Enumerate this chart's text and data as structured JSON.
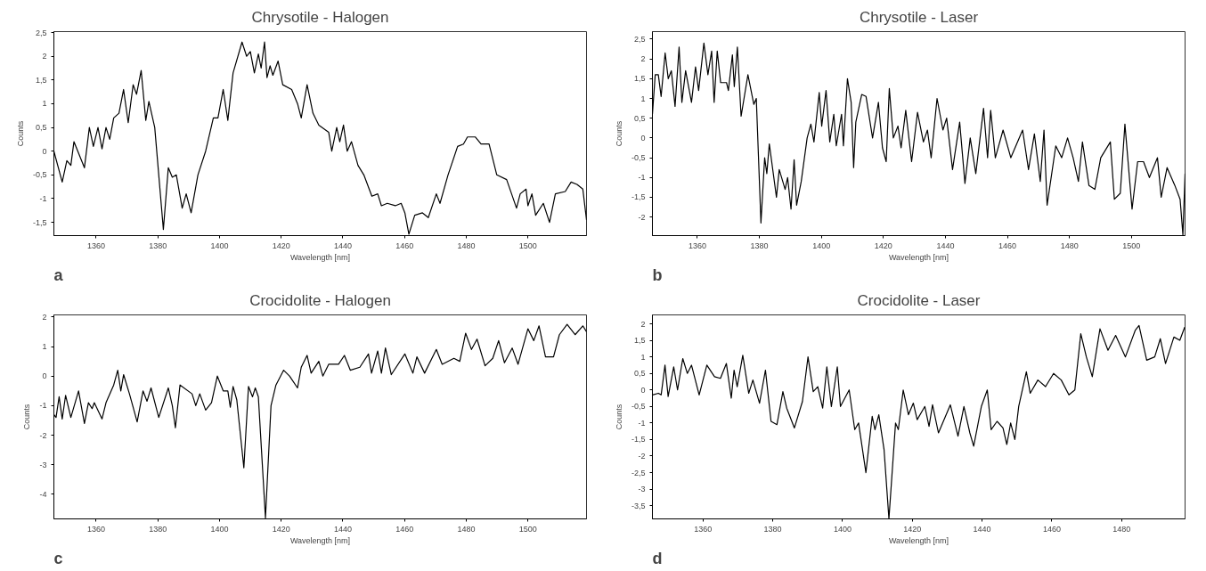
{
  "chart_data": [
    {
      "type": "line",
      "title": "Chrysotile - Halogen",
      "xlabel": "Wavelength [nm]",
      "ylabel": "Counts",
      "annotations": [
        "a"
      ],
      "x": [
        1346.3,
        1349,
        1350.5,
        1351.8,
        1352.8,
        1356.2,
        1357.8,
        1359.1,
        1360.6,
        1361.9,
        1363.2,
        1364.4,
        1365.7,
        1367.4,
        1368.9,
        1370.4,
        1372,
        1373.1,
        1374.6,
        1376.1,
        1377.1,
        1379,
        1380.3,
        1381.8,
        1383.4,
        1384.7,
        1386,
        1387.9,
        1389.2,
        1390.8,
        1393,
        1395.5,
        1398,
        1399.5,
        1401.2,
        1402.7,
        1404.4,
        1407.3,
        1408.8,
        1410,
        1411.3,
        1412.6,
        1413.5,
        1414.6,
        1415.4,
        1416.4,
        1417.3,
        1419,
        1420.5,
        1423.4,
        1425.3,
        1426.5,
        1428.4,
        1430.3,
        1432.2,
        1435.4,
        1436.4,
        1438,
        1439,
        1440.2,
        1441.4,
        1442.8,
        1444.9,
        1446.8,
        1449.4,
        1451.3,
        1452.5,
        1454.4,
        1457,
        1458.9,
        1460.1,
        1461.4,
        1463.3,
        1465.8,
        1467.7,
        1470.3,
        1471.5,
        1474.1,
        1477.2,
        1479.1,
        1480.4,
        1482.9,
        1484.8,
        1487.4,
        1489.9,
        1493.1,
        1496.3,
        1497.5,
        1499.4,
        1500,
        1501.3,
        1502.5,
        1505,
        1507,
        1508.9,
        1512.1,
        1514,
        1515.9,
        1517.8,
        1519
      ],
      "series": [
        {
          "color": "#000000",
          "values": [
            0.0,
            -0.65,
            -0.2,
            -0.3,
            0.2,
            -0.35,
            0.5,
            0.1,
            0.5,
            0.05,
            0.5,
            0.25,
            0.7,
            0.8,
            1.3,
            0.6,
            1.4,
            1.2,
            1.7,
            0.65,
            1.05,
            0.5,
            -0.5,
            -1.65,
            -0.35,
            -0.55,
            -0.5,
            -1.2,
            -0.9,
            -1.3,
            -0.5,
            0.0,
            0.7,
            0.7,
            1.3,
            0.65,
            1.65,
            2.3,
            2.0,
            2.1,
            1.65,
            2.05,
            1.75,
            2.3,
            1.55,
            1.8,
            1.6,
            1.9,
            1.4,
            1.3,
            1.0,
            0.7,
            1.4,
            0.8,
            0.55,
            0.4,
            0.0,
            0.5,
            0.2,
            0.55,
            0.0,
            0.2,
            -0.3,
            -0.5,
            -0.95,
            -0.9,
            -1.15,
            -1.1,
            -1.15,
            -1.1,
            -1.3,
            -1.75,
            -1.35,
            -1.3,
            -1.4,
            -0.9,
            -1.1,
            -0.5,
            0.1,
            0.15,
            0.3,
            0.3,
            0.15,
            0.15,
            -0.5,
            -0.6,
            -1.2,
            -0.9,
            -0.8,
            -1.15,
            -0.9,
            -1.35,
            -1.1,
            -1.5,
            -0.9,
            -0.85,
            -0.65,
            -0.7,
            -0.8,
            -1.45
          ]
        }
      ],
      "xlim": [
        1346.3,
        1519
      ],
      "ylim": [
        -1.78,
        2.52
      ],
      "xticks": [
        1360,
        1380,
        1400,
        1420,
        1440,
        1460,
        1480,
        1500
      ],
      "yticks": [
        {
          "value": -1.5,
          "label": "-1,5"
        },
        -1,
        {
          "value": -0.5,
          "label": "-0,5"
        },
        0,
        {
          "value": 0.5,
          "label": "0,5"
        },
        1,
        {
          "value": 1.5,
          "label": "1,5"
        },
        2,
        {
          "value": 2.5,
          "label": "2,5"
        }
      ]
    },
    {
      "type": "line",
      "title": "Chrysotile - Laser",
      "xlabel": "Wavelength [nm]",
      "ylabel": "Counts",
      "annotations": [
        "b"
      ],
      "x": [
        1345.5,
        1346.4,
        1347.4,
        1348.3,
        1349.6,
        1350.6,
        1351.6,
        1352.8,
        1354.1,
        1355,
        1356.2,
        1358.1,
        1359.4,
        1360.4,
        1362.1,
        1363.4,
        1364.6,
        1365.4,
        1366.4,
        1367.5,
        1369.4,
        1370,
        1371.3,
        1371.9,
        1372.9,
        1374.1,
        1376.3,
        1378.2,
        1379,
        1380.5,
        1381.7,
        1382.4,
        1383.2,
        1385.5,
        1386.4,
        1388.3,
        1389.1,
        1390.2,
        1391.2,
        1392,
        1393.5,
        1395.4,
        1396.6,
        1397.6,
        1399.3,
        1400.1,
        1401.5,
        1402.7,
        1404,
        1404.8,
        1406.5,
        1407.1,
        1408.4,
        1409.6,
        1410.4,
        1411.1,
        1413,
        1414.4,
        1416.5,
        1418.4,
        1419.7,
        1420.9,
        1421.9,
        1423.2,
        1424.7,
        1425.7,
        1427.2,
        1429.1,
        1431,
        1432.9,
        1434.2,
        1435.4,
        1437.3,
        1439.2,
        1440.4,
        1442.3,
        1444.6,
        1446.3,
        1448,
        1449.8,
        1452.3,
        1453.6,
        1454.6,
        1456.1,
        1458.6,
        1461.1,
        1464.9,
        1466.8,
        1468.7,
        1470.6,
        1471.8,
        1472.8,
        1475.6,
        1477.5,
        1479.4,
        1481.2,
        1482.9,
        1484.2,
        1486.3,
        1488.2,
        1490.1,
        1493.2,
        1494.5,
        1496.4,
        1497.9,
        1500.2,
        1502,
        1503.9,
        1505.8,
        1508.4,
        1509.6,
        1511.5,
        1514,
        1515.7,
        1516.6,
        1517.3
      ],
      "series": [
        {
          "color": "#000000",
          "values": [
            0.6,
            1.6,
            1.6,
            1.05,
            2.15,
            1.5,
            1.7,
            0.8,
            2.3,
            0.9,
            1.7,
            0.9,
            1.8,
            1.2,
            2.4,
            1.6,
            2.2,
            0.9,
            2.2,
            1.4,
            1.4,
            1.2,
            2.1,
            1.3,
            2.3,
            0.55,
            1.6,
            0.85,
            1.0,
            -2.15,
            -0.5,
            -0.9,
            -0.15,
            -1.5,
            -0.8,
            -1.3,
            -1.0,
            -1.8,
            -0.55,
            -1.7,
            -1.1,
            0.0,
            0.35,
            -0.1,
            1.15,
            0.3,
            1.2,
            -0.1,
            0.6,
            -0.2,
            0.6,
            -0.2,
            1.5,
            0.9,
            -0.75,
            0.4,
            1.1,
            1.05,
            0.0,
            0.9,
            -0.25,
            -0.6,
            1.25,
            0.0,
            0.3,
            -0.25,
            0.7,
            -0.6,
            0.65,
            -0.1,
            0.2,
            -0.5,
            1.0,
            0.2,
            0.5,
            -0.8,
            0.4,
            -1.15,
            0.0,
            -0.9,
            0.75,
            -0.5,
            0.7,
            -0.5,
            0.2,
            -0.5,
            0.2,
            -0.8,
            0.1,
            -1.1,
            0.2,
            -1.7,
            -0.2,
            -0.5,
            0.0,
            -0.5,
            -1.1,
            -0.1,
            -1.2,
            -1.3,
            -0.5,
            -0.1,
            -1.55,
            -1.4,
            0.35,
            -1.8,
            -0.6,
            -0.6,
            -1.0,
            -0.5,
            -1.5,
            -0.75,
            -1.2,
            -1.55,
            -2.45,
            -0.9
          ]
        }
      ],
      "xlim": [
        1345.5,
        1517.3
      ],
      "ylim": [
        -2.47,
        2.69
      ],
      "xticks": [
        1360,
        1380,
        1400,
        1420,
        1440,
        1460,
        1480,
        1500
      ],
      "yticks": [
        -2,
        {
          "value": -1.5,
          "label": "-1,5"
        },
        -1,
        {
          "value": -0.5,
          "label": "-0,5"
        },
        0,
        {
          "value": 0.5,
          "label": "0,5"
        },
        1,
        {
          "value": 1.5,
          "label": "1,5"
        },
        2,
        {
          "value": 2.5,
          "label": "2,5"
        }
      ]
    },
    {
      "type": "line",
      "title": "Crocidolite - Halogen",
      "xlabel": "Wavelength [nm]",
      "ylabel": "Counts",
      "annotations": [
        "c"
      ],
      "x": [
        1346.3,
        1347,
        1348,
        1349,
        1350.1,
        1351.8,
        1354.3,
        1356.2,
        1357.5,
        1358.7,
        1359.4,
        1361.9,
        1363.2,
        1365.7,
        1367,
        1368,
        1368.9,
        1370.8,
        1373.3,
        1375.2,
        1376.5,
        1377.8,
        1380.3,
        1383.4,
        1384.7,
        1385.7,
        1387.2,
        1391.1,
        1392.3,
        1393.6,
        1395.5,
        1397.4,
        1399.3,
        1401.2,
        1402.7,
        1403.5,
        1404.4,
        1405.6,
        1407.9,
        1409.4,
        1410.7,
        1411.6,
        1412.6,
        1414.9,
        1416.7,
        1418.3,
        1420.8,
        1422.7,
        1425.3,
        1426.5,
        1428.4,
        1429.7,
        1432.2,
        1433.5,
        1435.4,
        1438.6,
        1440.5,
        1442.4,
        1445.5,
        1448.3,
        1449.3,
        1451.3,
        1452.5,
        1453.8,
        1455.7,
        1460.1,
        1462.7,
        1464,
        1466.5,
        1470.3,
        1472.2,
        1476,
        1477.9,
        1479.8,
        1481.7,
        1483.5,
        1486.1,
        1488.6,
        1490.5,
        1492.4,
        1494.9,
        1496.8,
        1500,
        1501.9,
        1503.6,
        1505.7,
        1508.3,
        1510.2,
        1512.7,
        1515.3,
        1517.8,
        1519
      ],
      "series": [
        {
          "color": "#000000",
          "values": [
            -1.3,
            -1.4,
            -0.7,
            -1.45,
            -0.65,
            -1.4,
            -0.5,
            -1.6,
            -0.9,
            -1.1,
            -0.9,
            -1.45,
            -0.9,
            -0.3,
            0.2,
            -0.5,
            0.05,
            -0.6,
            -1.55,
            -0.5,
            -0.85,
            -0.4,
            -1.4,
            -0.4,
            -1.0,
            -1.75,
            -0.3,
            -0.6,
            -1.0,
            -0.6,
            -1.15,
            -0.9,
            0.0,
            -0.5,
            -0.5,
            -1.05,
            -0.35,
            -0.8,
            -3.1,
            -0.35,
            -0.7,
            -0.4,
            -0.7,
            -4.8,
            -1.0,
            -0.3,
            0.2,
            0.0,
            -0.4,
            0.3,
            0.7,
            0.1,
            0.5,
            0.0,
            0.4,
            0.4,
            0.7,
            0.2,
            0.3,
            0.75,
            0.1,
            0.85,
            0.1,
            0.95,
            0.05,
            0.75,
            0.1,
            0.65,
            0.1,
            0.9,
            0.4,
            0.6,
            0.5,
            1.45,
            0.9,
            1.25,
            0.35,
            0.6,
            1.2,
            0.45,
            0.95,
            0.4,
            1.6,
            1.2,
            1.7,
            0.65,
            0.65,
            1.4,
            1.75,
            1.4,
            1.7,
            1.5
          ]
        }
      ],
      "xlim": [
        1346.3,
        1519
      ],
      "ylim": [
        -4.83,
        2.07
      ],
      "xticks": [
        1360,
        1380,
        1400,
        1420,
        1440,
        1460,
        1480,
        1500
      ],
      "yticks": [
        -4,
        -3,
        -2,
        -1,
        0,
        1,
        2
      ]
    },
    {
      "type": "line",
      "title": "Crocidolite - Laser",
      "xlabel": "Wavelength [nm]",
      "ylabel": "Counts",
      "annotations": [
        "d"
      ],
      "x": [
        1345.5,
        1347.2,
        1348,
        1349.1,
        1350,
        1351.6,
        1352.7,
        1354.2,
        1355.5,
        1356.7,
        1358.9,
        1361.1,
        1363.3,
        1365,
        1366.7,
        1368.1,
        1368.9,
        1369.8,
        1371.4,
        1373.1,
        1374.3,
        1376.2,
        1377.9,
        1379.5,
        1381.2,
        1382.9,
        1384,
        1386.2,
        1388.5,
        1390.1,
        1391.6,
        1392.9,
        1394.3,
        1395.5,
        1396.8,
        1398.5,
        1399.4,
        1401.9,
        1403.5,
        1404.6,
        1406.7,
        1408.5,
        1409.3,
        1410.4,
        1411.9,
        1413.3,
        1415.2,
        1416,
        1417.4,
        1418.9,
        1420.3,
        1421.4,
        1423.6,
        1424.8,
        1425.8,
        1427.5,
        1430.9,
        1433.1,
        1434.8,
        1436.5,
        1437.6,
        1439.8,
        1441.5,
        1442.6,
        1444.3,
        1446,
        1447.1,
        1448.2,
        1449.4,
        1450.5,
        1452.7,
        1453.8,
        1456,
        1458.2,
        1460.5,
        1462.7,
        1464.9,
        1466.6,
        1468.3,
        1469.9,
        1471.6,
        1473.8,
        1476.1,
        1478.3,
        1481.1,
        1483.9,
        1485,
        1487.2,
        1489.5,
        1491.1,
        1492.6,
        1495,
        1496.7,
        1498.1
      ],
      "series": [
        {
          "color": "#000000",
          "values": [
            -0.15,
            -0.1,
            -0.15,
            0.75,
            -0.2,
            0.7,
            0.0,
            0.95,
            0.5,
            0.75,
            -0.15,
            0.75,
            0.4,
            0.35,
            0.8,
            -0.25,
            0.6,
            0.1,
            1.05,
            -0.1,
            0.3,
            -0.4,
            0.6,
            -0.95,
            -1.05,
            -0.05,
            -0.55,
            -1.15,
            -0.35,
            1.0,
            -0.05,
            0.1,
            -0.55,
            0.7,
            -0.5,
            0.7,
            -0.5,
            0.0,
            -1.2,
            -1.0,
            -2.5,
            -0.8,
            -1.2,
            -0.75,
            -1.8,
            -3.9,
            -1.0,
            -1.2,
            0.0,
            -0.75,
            -0.4,
            -0.9,
            -0.5,
            -1.1,
            -0.45,
            -1.3,
            -0.45,
            -1.4,
            -0.5,
            -1.3,
            -1.7,
            -0.5,
            0.0,
            -1.2,
            -0.95,
            -1.15,
            -1.65,
            -1.0,
            -1.5,
            -0.5,
            0.55,
            -0.1,
            0.3,
            0.1,
            0.5,
            0.3,
            -0.15,
            0.0,
            1.7,
            1.0,
            0.4,
            1.85,
            1.2,
            1.65,
            1.0,
            1.8,
            1.95,
            0.9,
            1.0,
            1.55,
            0.8,
            1.6,
            1.5,
            1.9
          ]
        }
      ],
      "xlim": [
        1345.5,
        1498.2
      ],
      "ylim": [
        -3.9,
        2.27
      ],
      "xticks": [
        1360,
        1380,
        1400,
        1420,
        1440,
        1460,
        1480
      ],
      "yticks": [
        {
          "value": -3.5,
          "label": "-3,5"
        },
        -3,
        {
          "value": -2.5,
          "label": "-2,5"
        },
        -2,
        {
          "value": -1.5,
          "label": "-1,5"
        },
        -1,
        {
          "value": -0.5,
          "label": "-0,5"
        },
        0,
        {
          "value": 0.5,
          "label": "0,5"
        },
        1,
        {
          "value": 1.5,
          "label": "1,5"
        },
        2
      ]
    }
  ]
}
